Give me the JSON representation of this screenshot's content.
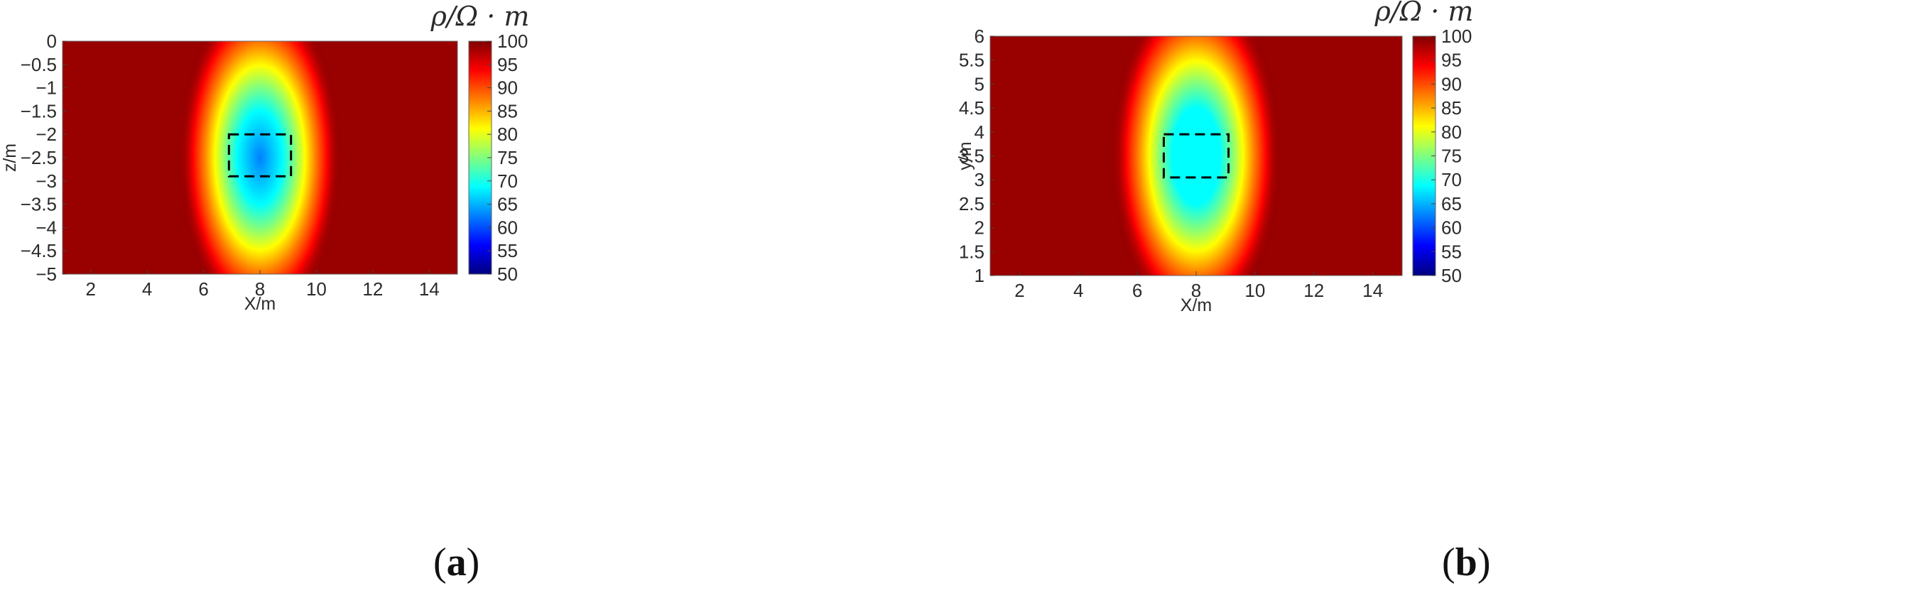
{
  "figure": {
    "panels": [
      {
        "id": "a",
        "caption_open": "(",
        "caption_letter": "a",
        "caption_close": ")"
      },
      {
        "id": "b",
        "caption_open": "(",
        "caption_letter": "b",
        "caption_close": ")"
      }
    ]
  },
  "colors": {
    "jet_stops": [
      "#00007f",
      "#0000ff",
      "#007fff",
      "#00ffff",
      "#7fff7f",
      "#ffff00",
      "#ff7f00",
      "#ff0000",
      "#7f0000"
    ],
    "background": "#990000",
    "anomaly_box": "#000000"
  },
  "chart_data": [
    {
      "type": "heatmap",
      "panel": "a",
      "xlabel": "X/m",
      "ylabel": "z/m",
      "xlim": [
        1,
        15
      ],
      "ylim": [
        -5,
        0
      ],
      "xticks": [
        2,
        4,
        6,
        8,
        10,
        12,
        14
      ],
      "xtick_labels": [
        "2",
        "4",
        "6",
        "8",
        "10",
        "12",
        "14"
      ],
      "yticks": [
        0,
        -0.5,
        -1,
        -1.5,
        -2,
        -2.5,
        -3,
        -3.5,
        -4,
        -4.5,
        -5
      ],
      "ytick_labels": [
        "0",
        "−0.5",
        "−1",
        "−1.5",
        "−2",
        "−2.5",
        "−3",
        "−3.5",
        "−4",
        "−4.5",
        "−5"
      ],
      "colorbar": {
        "label": "ρ/Ω · m",
        "range": [
          50,
          100
        ],
        "ticks": [
          100,
          95,
          90,
          85,
          80,
          75,
          70,
          65,
          60,
          55,
          50
        ],
        "tick_labels": [
          "100",
          "95",
          "90",
          "85",
          "80",
          "75",
          "70",
          "65",
          "60",
          "55",
          "50"
        ],
        "colormap": "jet"
      },
      "background_value": 100,
      "anomaly": {
        "center": [
          8,
          -2.5
        ],
        "min_value": 65
      },
      "dashed_box": {
        "x": [
          6.9,
          9.1
        ],
        "y": [
          -2.9,
          -2.0
        ]
      }
    },
    {
      "type": "heatmap",
      "panel": "b",
      "xlabel": "X/m",
      "ylabel": "y/m",
      "xlim": [
        1,
        15
      ],
      "ylim": [
        1,
        6
      ],
      "xticks": [
        2,
        4,
        6,
        8,
        10,
        12,
        14
      ],
      "xtick_labels": [
        "2",
        "4",
        "6",
        "8",
        "10",
        "12",
        "14"
      ],
      "yticks": [
        6,
        5.5,
        5,
        4.5,
        4,
        3.5,
        3,
        2.5,
        2,
        1.5,
        1
      ],
      "ytick_labels": [
        "6",
        "5.5",
        "5",
        "4.5",
        "4",
        "3.5",
        "3",
        "2.5",
        "2",
        "1.5",
        "1"
      ],
      "colorbar": {
        "label": "ρ/Ω · m",
        "range": [
          50,
          100
        ],
        "ticks": [
          100,
          95,
          90,
          85,
          80,
          75,
          70,
          65,
          60,
          55,
          50
        ],
        "tick_labels": [
          "100",
          "95",
          "90",
          "85",
          "80",
          "75",
          "70",
          "65",
          "60",
          "55",
          "50"
        ],
        "colormap": "jet"
      },
      "background_value": 100,
      "anomaly": {
        "center": [
          8,
          3.5
        ],
        "min_value": 66
      },
      "dashed_box": {
        "x": [
          6.9,
          9.1
        ],
        "y": [
          3.05,
          3.95
        ]
      }
    }
  ]
}
